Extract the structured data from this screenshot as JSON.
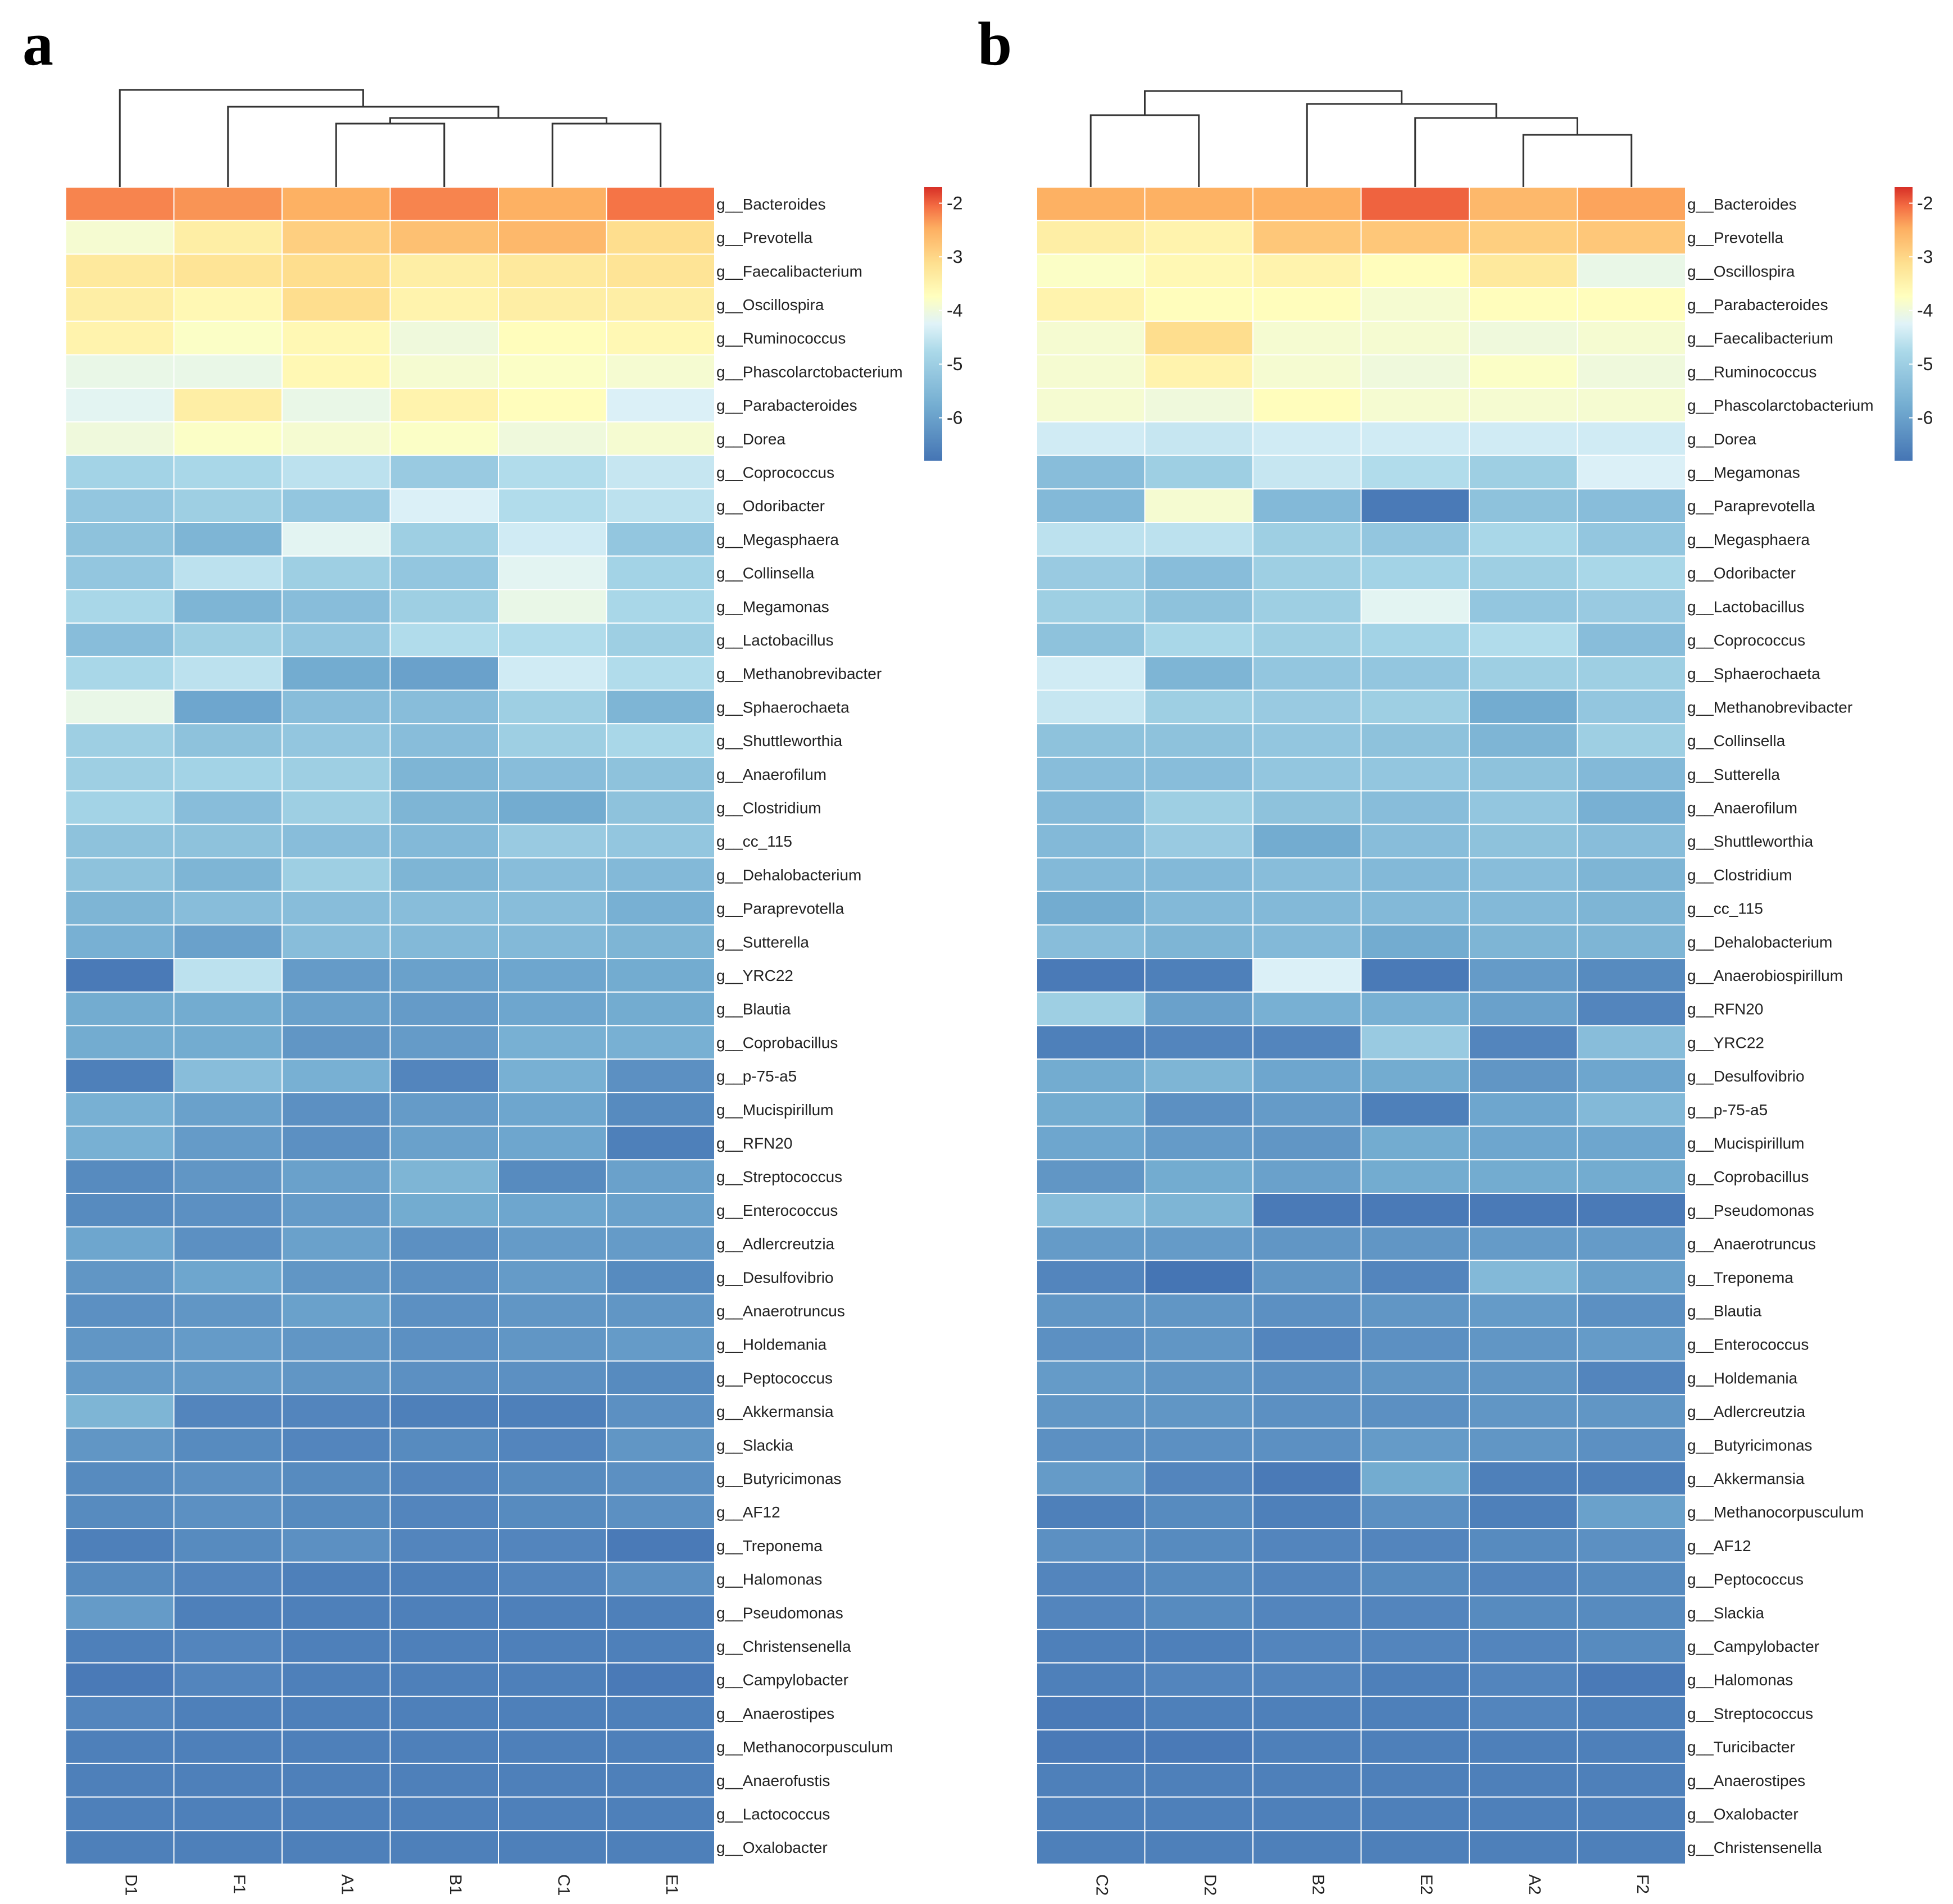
{
  "chart_data": [
    {
      "type": "heatmap",
      "panel_label": "a",
      "columns": [
        "D1",
        "F1",
        "A1",
        "B1",
        "C1",
        "E1"
      ],
      "rows": [
        "g__Bacteroides",
        "g__Prevotella",
        "g__Faecalibacterium",
        "g__Oscillospira",
        "g__Ruminococcus",
        "g__Phascolarctobacterium",
        "g__Parabacteroides",
        "g__Dorea",
        "g__Coprococcus",
        "g__Odoribacter",
        "g__Megasphaera",
        "g__Collinsella",
        "g__Megamonas",
        "g__Lactobacillus",
        "g__Methanobrevibacter",
        "g__Sphaerochaeta",
        "g__Shuttleworthia",
        "g__Anaerofilum",
        "g__Clostridium",
        "g__cc_115",
        "g__Dehalobacterium",
        "g__Paraprevotella",
        "g__Sutterella",
        "g__YRC22",
        "g__Blautia",
        "g__Coprobacillus",
        "g__p-75-a5",
        "g__Mucispirillum",
        "g__RFN20",
        "g__Streptococcus",
        "g__Enterococcus",
        "g__Adlercreutzia",
        "g__Desulfovibrio",
        "g__Anaerotruncus",
        "g__Holdemania",
        "g__Peptococcus",
        "g__Akkermansia",
        "g__Slackia",
        "g__Butyricimonas",
        "g__AF12",
        "g__Treponema",
        "g__Halomonas",
        "g__Pseudomonas",
        "g__Christensenella",
        "g__Campylobacter",
        "g__Anaerostipes",
        "g__Methanocorpusculum",
        "g__Anaerofustis",
        "g__Lactococcus",
        "g__Oxalobacter"
      ],
      "values": [
        [
          -2.2,
          -2.3,
          -2.5,
          -2.2,
          -2.5,
          -2.1
        ],
        [
          -3.9,
          -3.4,
          -2.9,
          -2.7,
          -2.6,
          -3.1
        ],
        [
          -3.3,
          -3.2,
          -3.1,
          -3.4,
          -3.3,
          -3.2
        ],
        [
          -3.4,
          -3.6,
          -3.1,
          -3.5,
          -3.4,
          -3.4
        ],
        [
          -3.5,
          -3.8,
          -3.6,
          -4.0,
          -3.7,
          -3.6
        ],
        [
          -4.1,
          -4.1,
          -3.6,
          -3.9,
          -3.8,
          -3.9
        ],
        [
          -4.2,
          -3.4,
          -4.1,
          -3.5,
          -3.7,
          -4.3
        ],
        [
          -4.0,
          -3.8,
          -3.9,
          -3.8,
          -4.0,
          -3.9
        ],
        [
          -4.9,
          -4.8,
          -4.6,
          -5.1,
          -4.7,
          -4.5
        ],
        [
          -5.2,
          -5.0,
          -5.2,
          -4.3,
          -4.7,
          -4.6
        ],
        [
          -5.3,
          -5.6,
          -4.2,
          -5.0,
          -4.4,
          -5.2
        ],
        [
          -5.2,
          -4.6,
          -5.0,
          -5.2,
          -4.2,
          -4.9
        ],
        [
          -4.8,
          -5.6,
          -5.4,
          -5.0,
          -4.1,
          -4.8
        ],
        [
          -5.4,
          -5.0,
          -5.2,
          -4.7,
          -4.7,
          -5.0
        ],
        [
          -4.8,
          -4.6,
          -5.8,
          -6.0,
          -4.4,
          -4.7
        ],
        [
          -4.1,
          -5.9,
          -5.4,
          -5.4,
          -5.0,
          -5.6
        ],
        [
          -5.0,
          -5.3,
          -5.2,
          -5.4,
          -5.0,
          -4.8
        ],
        [
          -5.0,
          -4.9,
          -5.0,
          -5.6,
          -5.4,
          -5.3
        ],
        [
          -4.9,
          -5.4,
          -5.0,
          -5.6,
          -5.8,
          -5.3
        ],
        [
          -5.3,
          -5.3,
          -5.4,
          -5.5,
          -5.1,
          -5.2
        ],
        [
          -5.3,
          -5.6,
          -5.0,
          -5.6,
          -5.4,
          -5.5
        ],
        [
          -5.6,
          -5.4,
          -5.4,
          -5.4,
          -5.4,
          -5.7
        ],
        [
          -5.7,
          -6.0,
          -5.4,
          -5.5,
          -5.5,
          -5.6
        ],
        [
          -6.7,
          -4.6,
          -6.1,
          -6.0,
          -5.9,
          -5.8
        ],
        [
          -5.8,
          -5.8,
          -6.0,
          -6.1,
          -5.9,
          -5.8
        ],
        [
          -5.8,
          -5.8,
          -6.2,
          -6.1,
          -5.7,
          -5.7
        ],
        [
          -6.6,
          -5.4,
          -5.7,
          -6.5,
          -5.7,
          -6.3
        ],
        [
          -5.7,
          -6.0,
          -6.3,
          -6.1,
          -5.9,
          -6.4
        ],
        [
          -5.7,
          -6.1,
          -6.3,
          -6.0,
          -5.9,
          -6.6
        ],
        [
          -6.4,
          -6.2,
          -6.0,
          -5.6,
          -6.4,
          -6.0
        ],
        [
          -6.4,
          -6.3,
          -6.1,
          -5.8,
          -5.9,
          -6.0
        ],
        [
          -5.9,
          -6.3,
          -6.0,
          -6.3,
          -6.1,
          -6.1
        ],
        [
          -6.2,
          -5.9,
          -6.2,
          -6.3,
          -6.1,
          -6.4
        ],
        [
          -6.3,
          -6.2,
          -6.0,
          -6.3,
          -6.2,
          -6.2
        ],
        [
          -6.2,
          -6.1,
          -6.2,
          -6.3,
          -6.2,
          -6.1
        ],
        [
          -6.1,
          -6.1,
          -6.2,
          -6.3,
          -6.3,
          -6.4
        ],
        [
          -5.6,
          -6.5,
          -6.5,
          -6.6,
          -6.6,
          -6.3
        ],
        [
          -6.2,
          -6.4,
          -6.5,
          -6.4,
          -6.5,
          -6.2
        ],
        [
          -6.4,
          -6.3,
          -6.4,
          -6.5,
          -6.4,
          -6.3
        ],
        [
          -6.4,
          -6.3,
          -6.4,
          -6.5,
          -6.4,
          -6.3
        ],
        [
          -6.6,
          -6.4,
          -6.3,
          -6.5,
          -6.5,
          -6.7
        ],
        [
          -6.4,
          -6.5,
          -6.6,
          -6.6,
          -6.5,
          -6.3
        ],
        [
          -6.1,
          -6.6,
          -6.6,
          -6.6,
          -6.6,
          -6.6
        ],
        [
          -6.6,
          -6.5,
          -6.6,
          -6.6,
          -6.6,
          -6.6
        ],
        [
          -6.7,
          -6.5,
          -6.6,
          -6.6,
          -6.6,
          -6.7
        ],
        [
          -6.5,
          -6.6,
          -6.6,
          -6.6,
          -6.6,
          -6.6
        ],
        [
          -6.6,
          -6.6,
          -6.6,
          -6.6,
          -6.6,
          -6.6
        ],
        [
          -6.6,
          -6.6,
          -6.6,
          -6.6,
          -6.6,
          -6.6
        ],
        [
          -6.6,
          -6.6,
          -6.6,
          -6.6,
          -6.6,
          -6.6
        ],
        [
          -6.6,
          -6.6,
          -6.6,
          -6.6,
          -6.6,
          -6.6
        ]
      ],
      "colorbar": {
        "ticks": [
          -2,
          -3,
          -4,
          -5,
          -6
        ],
        "range": [
          -6.8,
          -1.7
        ]
      }
    },
    {
      "type": "heatmap",
      "panel_label": "b",
      "columns": [
        "C2",
        "D2",
        "B2",
        "E2",
        "A2",
        "F2"
      ],
      "rows": [
        "g__Bacteroides",
        "g__Prevotella",
        "g__Oscillospira",
        "g__Parabacteroides",
        "g__Faecalibacterium",
        "g__Ruminococcus",
        "g__Phascolarctobacterium",
        "g__Dorea",
        "g__Megamonas",
        "g__Paraprevotella",
        "g__Megasphaera",
        "g__Odoribacter",
        "g__Lactobacillus",
        "g__Coprococcus",
        "g__Sphaerochaeta",
        "g__Methanobrevibacter",
        "g__Collinsella",
        "g__Sutterella",
        "g__Anaerofilum",
        "g__Shuttleworthia",
        "g__Clostridium",
        "g__cc_115",
        "g__Dehalobacterium",
        "g__Anaerobiospirillum",
        "g__RFN20",
        "g__YRC22",
        "g__Desulfovibrio",
        "g__p-75-a5",
        "g__Mucispirillum",
        "g__Coprobacillus",
        "g__Pseudomonas",
        "g__Anaerotruncus",
        "g__Treponema",
        "g__Blautia",
        "g__Enterococcus",
        "g__Holdemania",
        "g__Adlercreutzia",
        "g__Butyricimonas",
        "g__Akkermansia",
        "g__Methanocorpusculum",
        "g__AF12",
        "g__Peptococcus",
        "g__Slackia",
        "g__Campylobacter",
        "g__Halomonas",
        "g__Streptococcus",
        "g__Turicibacter",
        "g__Anaerostipes",
        "g__Oxalobacter",
        "g__Christensenella"
      ],
      "values": [
        [
          -2.5,
          -2.5,
          -2.5,
          -2.0,
          -2.6,
          -2.4
        ],
        [
          -3.4,
          -3.5,
          -2.8,
          -2.8,
          -2.9,
          -2.8
        ],
        [
          -3.8,
          -3.6,
          -3.5,
          -3.7,
          -3.3,
          -4.1
        ],
        [
          -3.5,
          -3.7,
          -3.7,
          -3.9,
          -3.7,
          -3.7
        ],
        [
          -3.9,
          -3.1,
          -3.9,
          -3.9,
          -4.0,
          -3.9
        ],
        [
          -3.9,
          -3.5,
          -3.9,
          -4.0,
          -3.8,
          -4.0
        ],
        [
          -3.9,
          -4.0,
          -3.7,
          -3.9,
          -3.9,
          -3.9
        ],
        [
          -4.4,
          -4.5,
          -4.4,
          -4.4,
          -4.4,
          -4.4
        ],
        [
          -5.4,
          -5.0,
          -4.5,
          -4.7,
          -5.0,
          -4.3
        ],
        [
          -5.5,
          -3.9,
          -5.5,
          -6.7,
          -5.3,
          -5.4
        ],
        [
          -4.6,
          -4.6,
          -5.0,
          -5.2,
          -4.8,
          -5.2
        ],
        [
          -5.1,
          -5.4,
          -5.0,
          -4.9,
          -5.0,
          -4.8
        ],
        [
          -5.0,
          -5.3,
          -5.0,
          -4.2,
          -5.2,
          -5.1
        ],
        [
          -5.3,
          -4.8,
          -5.0,
          -4.9,
          -4.7,
          -5.4
        ],
        [
          -4.4,
          -5.6,
          -5.2,
          -5.2,
          -5.0,
          -5.0
        ],
        [
          -4.5,
          -5.0,
          -5.1,
          -5.0,
          -5.8,
          -5.2
        ],
        [
          -5.3,
          -5.3,
          -5.2,
          -5.3,
          -5.6,
          -5.0
        ],
        [
          -5.4,
          -5.4,
          -5.2,
          -5.2,
          -5.3,
          -5.5
        ],
        [
          -5.5,
          -5.0,
          -5.3,
          -5.4,
          -5.2,
          -5.7
        ],
        [
          -5.5,
          -5.1,
          -5.8,
          -5.4,
          -5.3,
          -5.4
        ],
        [
          -5.5,
          -5.5,
          -5.4,
          -5.5,
          -5.4,
          -5.6
        ],
        [
          -5.8,
          -5.5,
          -5.5,
          -5.5,
          -5.5,
          -5.6
        ],
        [
          -5.4,
          -5.6,
          -5.5,
          -5.8,
          -5.6,
          -5.6
        ],
        [
          -6.7,
          -6.6,
          -4.3,
          -6.7,
          -6.1,
          -6.4
        ],
        [
          -5.0,
          -6.0,
          -5.7,
          -5.7,
          -6.0,
          -6.5
        ],
        [
          -6.6,
          -6.5,
          -6.5,
          -5.1,
          -6.5,
          -5.4
        ],
        [
          -5.8,
          -5.6,
          -5.9,
          -5.8,
          -6.2,
          -5.9
        ],
        [
          -5.8,
          -6.3,
          -6.1,
          -6.6,
          -5.9,
          -5.5
        ],
        [
          -5.9,
          -6.1,
          -6.2,
          -5.8,
          -5.9,
          -5.9
        ],
        [
          -6.2,
          -5.8,
          -6.0,
          -5.8,
          -5.8,
          -5.8
        ],
        [
          -5.4,
          -5.6,
          -6.7,
          -6.7,
          -6.7,
          -6.7
        ],
        [
          -6.1,
          -6.1,
          -6.2,
          -6.2,
          -6.1,
          -6.1
        ],
        [
          -6.5,
          -6.8,
          -6.2,
          -6.5,
          -5.5,
          -6.0
        ],
        [
          -6.2,
          -6.2,
          -6.3,
          -6.2,
          -6.1,
          -6.3
        ],
        [
          -6.3,
          -6.2,
          -6.5,
          -6.3,
          -6.2,
          -6.1
        ],
        [
          -6.1,
          -6.2,
          -6.3,
          -6.2,
          -6.2,
          -6.5
        ],
        [
          -6.2,
          -6.2,
          -6.3,
          -6.3,
          -6.2,
          -6.2
        ],
        [
          -6.3,
          -6.3,
          -6.3,
          -6.1,
          -6.2,
          -6.3
        ],
        [
          -6.1,
          -6.5,
          -6.7,
          -5.8,
          -6.6,
          -6.6
        ],
        [
          -6.6,
          -6.4,
          -6.6,
          -6.3,
          -6.6,
          -6.0
        ],
        [
          -6.3,
          -6.4,
          -6.5,
          -6.5,
          -6.4,
          -6.3
        ],
        [
          -6.5,
          -6.4,
          -6.5,
          -6.4,
          -6.5,
          -6.4
        ],
        [
          -6.5,
          -6.4,
          -6.5,
          -6.5,
          -6.4,
          -6.4
        ],
        [
          -6.6,
          -6.6,
          -6.5,
          -6.5,
          -6.5,
          -6.4
        ],
        [
          -6.6,
          -6.5,
          -6.5,
          -6.6,
          -6.5,
          -6.7
        ],
        [
          -6.7,
          -6.6,
          -6.6,
          -6.6,
          -6.5,
          -6.6
        ],
        [
          -6.7,
          -6.7,
          -6.6,
          -6.6,
          -6.6,
          -6.6
        ],
        [
          -6.6,
          -6.6,
          -6.6,
          -6.6,
          -6.6,
          -6.6
        ],
        [
          -6.6,
          -6.6,
          -6.6,
          -6.6,
          -6.6,
          -6.6
        ],
        [
          -6.6,
          -6.6,
          -6.6,
          -6.6,
          -6.6,
          -6.6
        ]
      ],
      "colorbar": {
        "ticks": [
          -2,
          -3,
          -4,
          -5,
          -6
        ],
        "range": [
          -6.8,
          -1.7
        ]
      }
    }
  ]
}
